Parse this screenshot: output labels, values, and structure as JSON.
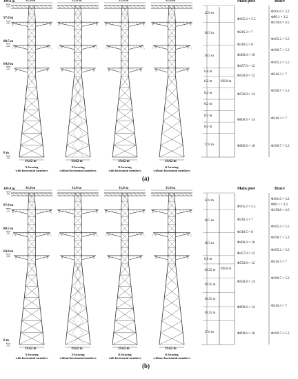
{
  "elevations": [
    "109.0 m",
    "97.0 m",
    "80.5 m",
    "64.0 m",
    "0 m"
  ],
  "top_widths": [
    "31.0 m",
    "31.0 m",
    "31.0 m",
    "31.0 m"
  ],
  "base_widths": [
    "19.62 m",
    "19.62 m",
    "19.62 m",
    "19.62 m"
  ],
  "captions": [
    [
      "X-bracing",
      "with horizontal members"
    ],
    [
      "X-bracing",
      "without horizontal members"
    ],
    [
      "K-bracing",
      "with horizontal members"
    ],
    [
      "K-bracing",
      "without horizontal members"
    ]
  ],
  "table_headers": {
    "main": "Main post",
    "brace": "Brace"
  },
  "total_height": "109.0 m",
  "panel_a": {
    "label": "(a)",
    "segments": [
      "12.0 m",
      "16.5 m",
      "16.5 m",
      "6.0 m",
      "8.2 m",
      "8.2 m",
      "8.2 m",
      "8.2 m",
      "8.2 m",
      "17.0 m"
    ],
    "main_posts": [
      "Φ165.2 × 5.5",
      "Φ216.3 × 7",
      "Φ318.5 × 8",
      "Φ406.0 × 10",
      "Φ457.0 × 12",
      "Φ558.8 × 12",
      "Φ558.8 × 14",
      "Φ609.6 × 14",
      "Φ609.6 × 16"
    ],
    "braces": [
      "Φ101.6 × 3.2",
      "Φ89.1 × 3.2",
      "Φ139.8 × 4.5",
      "Φ165.2 × 5.5",
      "Φ190.7 × 5.3",
      "Φ165.2 × 5.5",
      "Φ216.3 × 7",
      "Φ190.7 × 5.3",
      "Φ216.3 × 7",
      "Φ190.7 × 5.3"
    ]
  },
  "panel_b": {
    "label": "(b)",
    "segments": [
      "12.0 m",
      "16.5 m",
      "16.5 m",
      "6.0 m",
      "10.25 m",
      "10.25 m",
      "10.25 m",
      "10.25 m",
      "17.0 m"
    ],
    "main_posts": [
      "Φ165.2 × 5.5",
      "Φ216.3 × 7",
      "Φ318.5 × 8",
      "Φ406.0 × 10",
      "Φ457.0 × 12",
      "Φ558.8 × 12",
      "Φ558.8 × 14",
      "Φ609.6 × 14",
      "Φ609.6 × 16"
    ],
    "braces": [
      "Φ101.6 × 3.2",
      "Φ89.1 × 3.2",
      "Φ139.8 × 4.5",
      "Φ165.2 × 5.5",
      "Φ190.7 × 5.3",
      "Φ165.2 × 5.5",
      "Φ216.3 × 7",
      "Φ190.7 × 5.3",
      "Φ216.3 × 7",
      "Φ190.7 × 5.3"
    ]
  }
}
